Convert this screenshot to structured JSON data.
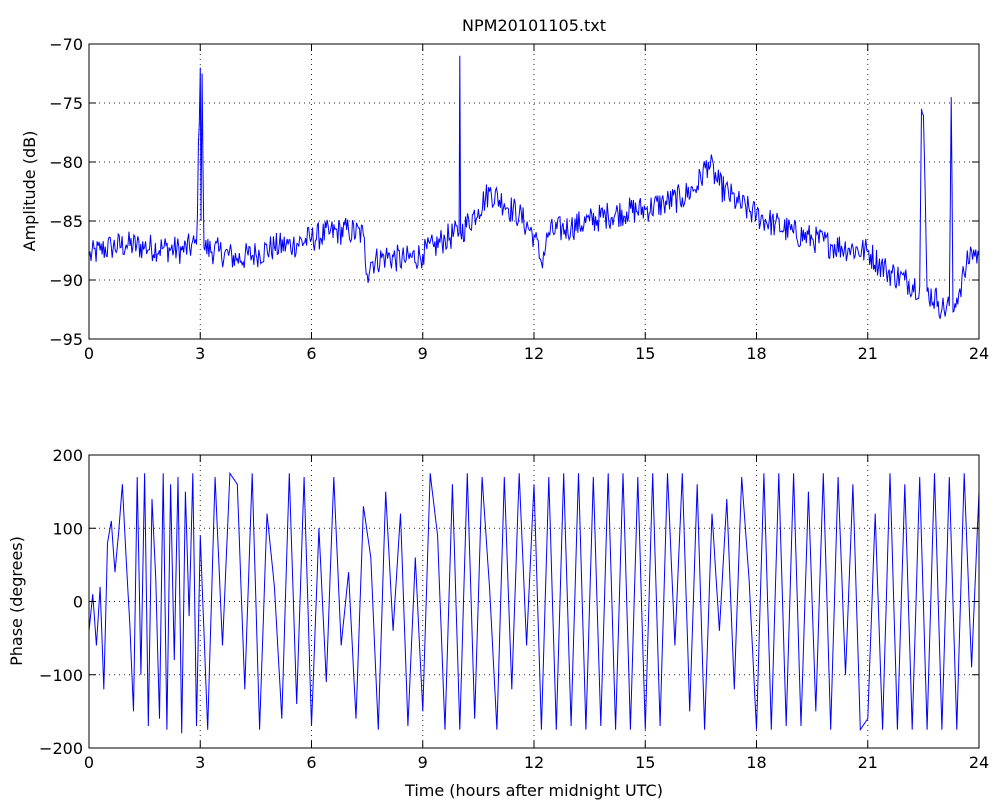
{
  "chart_data": [
    {
      "type": "line",
      "title": "NPM20101105.txt",
      "xlabel": "",
      "ylabel": "Amplitude (dB)",
      "xlim": [
        0,
        24
      ],
      "ylim": [
        -95,
        -70
      ],
      "xticks": [
        0,
        3,
        6,
        9,
        12,
        15,
        18,
        21,
        24
      ],
      "yticks": [
        -95,
        -90,
        -85,
        -80,
        -75,
        -70
      ],
      "xtick_labels": [
        "0",
        "3",
        "6",
        "9",
        "12",
        "15",
        "18",
        "21",
        "24"
      ],
      "ytick_labels": [
        "−95",
        "−90",
        "−85",
        "−80",
        "−75",
        "−70"
      ],
      "grid": true,
      "color": "#0000ff",
      "series": [
        {
          "noise": 1.2,
          "x": [
            0,
            0.3,
            0.6,
            1.0,
            1.5,
            2.0,
            2.5,
            2.9,
            3.0,
            3.02,
            3.05,
            3.1,
            3.5,
            4.0,
            4.5,
            5.0,
            5.5,
            6.0,
            6.5,
            7.0,
            7.4,
            7.5,
            7.6,
            8.0,
            8.5,
            9.0,
            9.3,
            9.6,
            9.98,
            10.0,
            10.02,
            10.5,
            10.8,
            11.2,
            11.6,
            12.0,
            12.2,
            12.4,
            13.0,
            13.5,
            14.0,
            14.5,
            15.0,
            15.5,
            16.0,
            16.4,
            16.7,
            17.0,
            17.5,
            18.0,
            18.5,
            19.0,
            19.5,
            20.0,
            20.5,
            21.0,
            21.5,
            22.0,
            22.4,
            22.45,
            22.5,
            22.6,
            22.9,
            23.0,
            23.2,
            23.25,
            23.3,
            23.4,
            23.6,
            23.8,
            24.0
          ],
          "y": [
            -88,
            -87.5,
            -87.2,
            -87,
            -87.2,
            -87.3,
            -87.5,
            -87,
            -72,
            -85,
            -72.5,
            -87.3,
            -87.6,
            -88.2,
            -87.8,
            -87.2,
            -87,
            -86.5,
            -86,
            -85.8,
            -86.2,
            -89.5,
            -88.5,
            -88,
            -88.3,
            -87.8,
            -87.2,
            -86.5,
            -86,
            -71,
            -86,
            -84,
            -82.5,
            -83.5,
            -84.5,
            -86.2,
            -88.5,
            -86,
            -85.5,
            -85,
            -84.5,
            -84.2,
            -84,
            -83.5,
            -83,
            -82,
            -80,
            -82,
            -83.5,
            -84.5,
            -85.3,
            -86,
            -86.5,
            -87,
            -87.3,
            -87.6,
            -89.2,
            -90,
            -90.6,
            -75.5,
            -76,
            -91,
            -91.8,
            -92.5,
            -92.2,
            -74.5,
            -92.7,
            -91.5,
            -89.5,
            -87.5,
            -88
          ]
        }
      ]
    },
    {
      "type": "line",
      "title": "",
      "xlabel": "Time (hours after midnight UTC)",
      "ylabel": "Phase (degrees)",
      "xlim": [
        0,
        24
      ],
      "ylim": [
        -200,
        200
      ],
      "xticks": [
        0,
        3,
        6,
        9,
        12,
        15,
        18,
        21,
        24
      ],
      "yticks": [
        -200,
        -100,
        0,
        100,
        200
      ],
      "xtick_labels": [
        "0",
        "3",
        "6",
        "9",
        "12",
        "15",
        "18",
        "21",
        "24"
      ],
      "ytick_labels": [
        "−200",
        "−100",
        "0",
        "100",
        "200"
      ],
      "grid": true,
      "color": "#0000ff",
      "series": [
        {
          "x": [
            0,
            0.1,
            0.2,
            0.3,
            0.4,
            0.5,
            0.6,
            0.7,
            0.8,
            0.9,
            1.0,
            1.1,
            1.2,
            1.3,
            1.4,
            1.5,
            1.6,
            1.7,
            1.8,
            1.9,
            2.0,
            2.1,
            2.2,
            2.3,
            2.4,
            2.5,
            2.6,
            2.7,
            2.8,
            2.9,
            3.0,
            3.2,
            3.4,
            3.6,
            3.8,
            4.0,
            4.2,
            4.4,
            4.6,
            4.8,
            5.0,
            5.2,
            5.4,
            5.6,
            5.8,
            6.0,
            6.2,
            6.4,
            6.6,
            6.8,
            7.0,
            7.2,
            7.4,
            7.6,
            7.8,
            8.0,
            8.2,
            8.4,
            8.6,
            8.8,
            9.0,
            9.2,
            9.4,
            9.6,
            9.8,
            10.0,
            10.2,
            10.4,
            10.6,
            10.8,
            11.0,
            11.2,
            11.4,
            11.6,
            11.8,
            12.0,
            12.2,
            12.4,
            12.6,
            12.8,
            13.0,
            13.2,
            13.4,
            13.6,
            13.8,
            14.0,
            14.2,
            14.4,
            14.6,
            14.8,
            15.0,
            15.2,
            15.4,
            15.6,
            15.8,
            16.0,
            16.2,
            16.4,
            16.6,
            16.8,
            17.0,
            17.2,
            17.4,
            17.6,
            17.8,
            18.0,
            18.2,
            18.4,
            18.6,
            18.8,
            19.0,
            19.2,
            19.4,
            19.6,
            19.8,
            20.0,
            20.2,
            20.4,
            20.6,
            20.8,
            21.0,
            21.2,
            21.4,
            21.6,
            21.8,
            22.0,
            22.2,
            22.4,
            22.6,
            22.8,
            23.0,
            23.2,
            23.4,
            23.6,
            23.8,
            24.0
          ],
          "y": [
            -40,
            10,
            -60,
            20,
            -120,
            80,
            110,
            40,
            95,
            160,
            60,
            -30,
            -150,
            170,
            -100,
            175,
            -170,
            140,
            30,
            -160,
            175,
            -175,
            160,
            -80,
            170,
            -180,
            150,
            -20,
            175,
            -170,
            90,
            -175,
            170,
            -60,
            175,
            160,
            -120,
            175,
            -175,
            120,
            20,
            -160,
            175,
            -140,
            170,
            -170,
            100,
            -110,
            170,
            -60,
            40,
            -160,
            130,
            60,
            -175,
            150,
            -40,
            120,
            -170,
            60,
            -150,
            175,
            90,
            -175,
            160,
            -175,
            175,
            -160,
            170,
            20,
            -175,
            170,
            -120,
            175,
            -60,
            160,
            -175,
            170,
            -175,
            175,
            -170,
            175,
            -175,
            170,
            -170,
            175,
            -175,
            175,
            -175,
            170,
            -175,
            175,
            -170,
            175,
            -60,
            175,
            -150,
            160,
            -175,
            120,
            -40,
            140,
            -120,
            170,
            30,
            -175,
            175,
            -175,
            175,
            -170,
            175,
            -170,
            150,
            -150,
            175,
            -175,
            170,
            -100,
            160,
            -175,
            -160,
            120,
            -175,
            175,
            -175,
            160,
            -175,
            170,
            -175,
            175,
            -175,
            170,
            -175,
            175,
            -90,
            150
          ]
        }
      ]
    }
  ]
}
